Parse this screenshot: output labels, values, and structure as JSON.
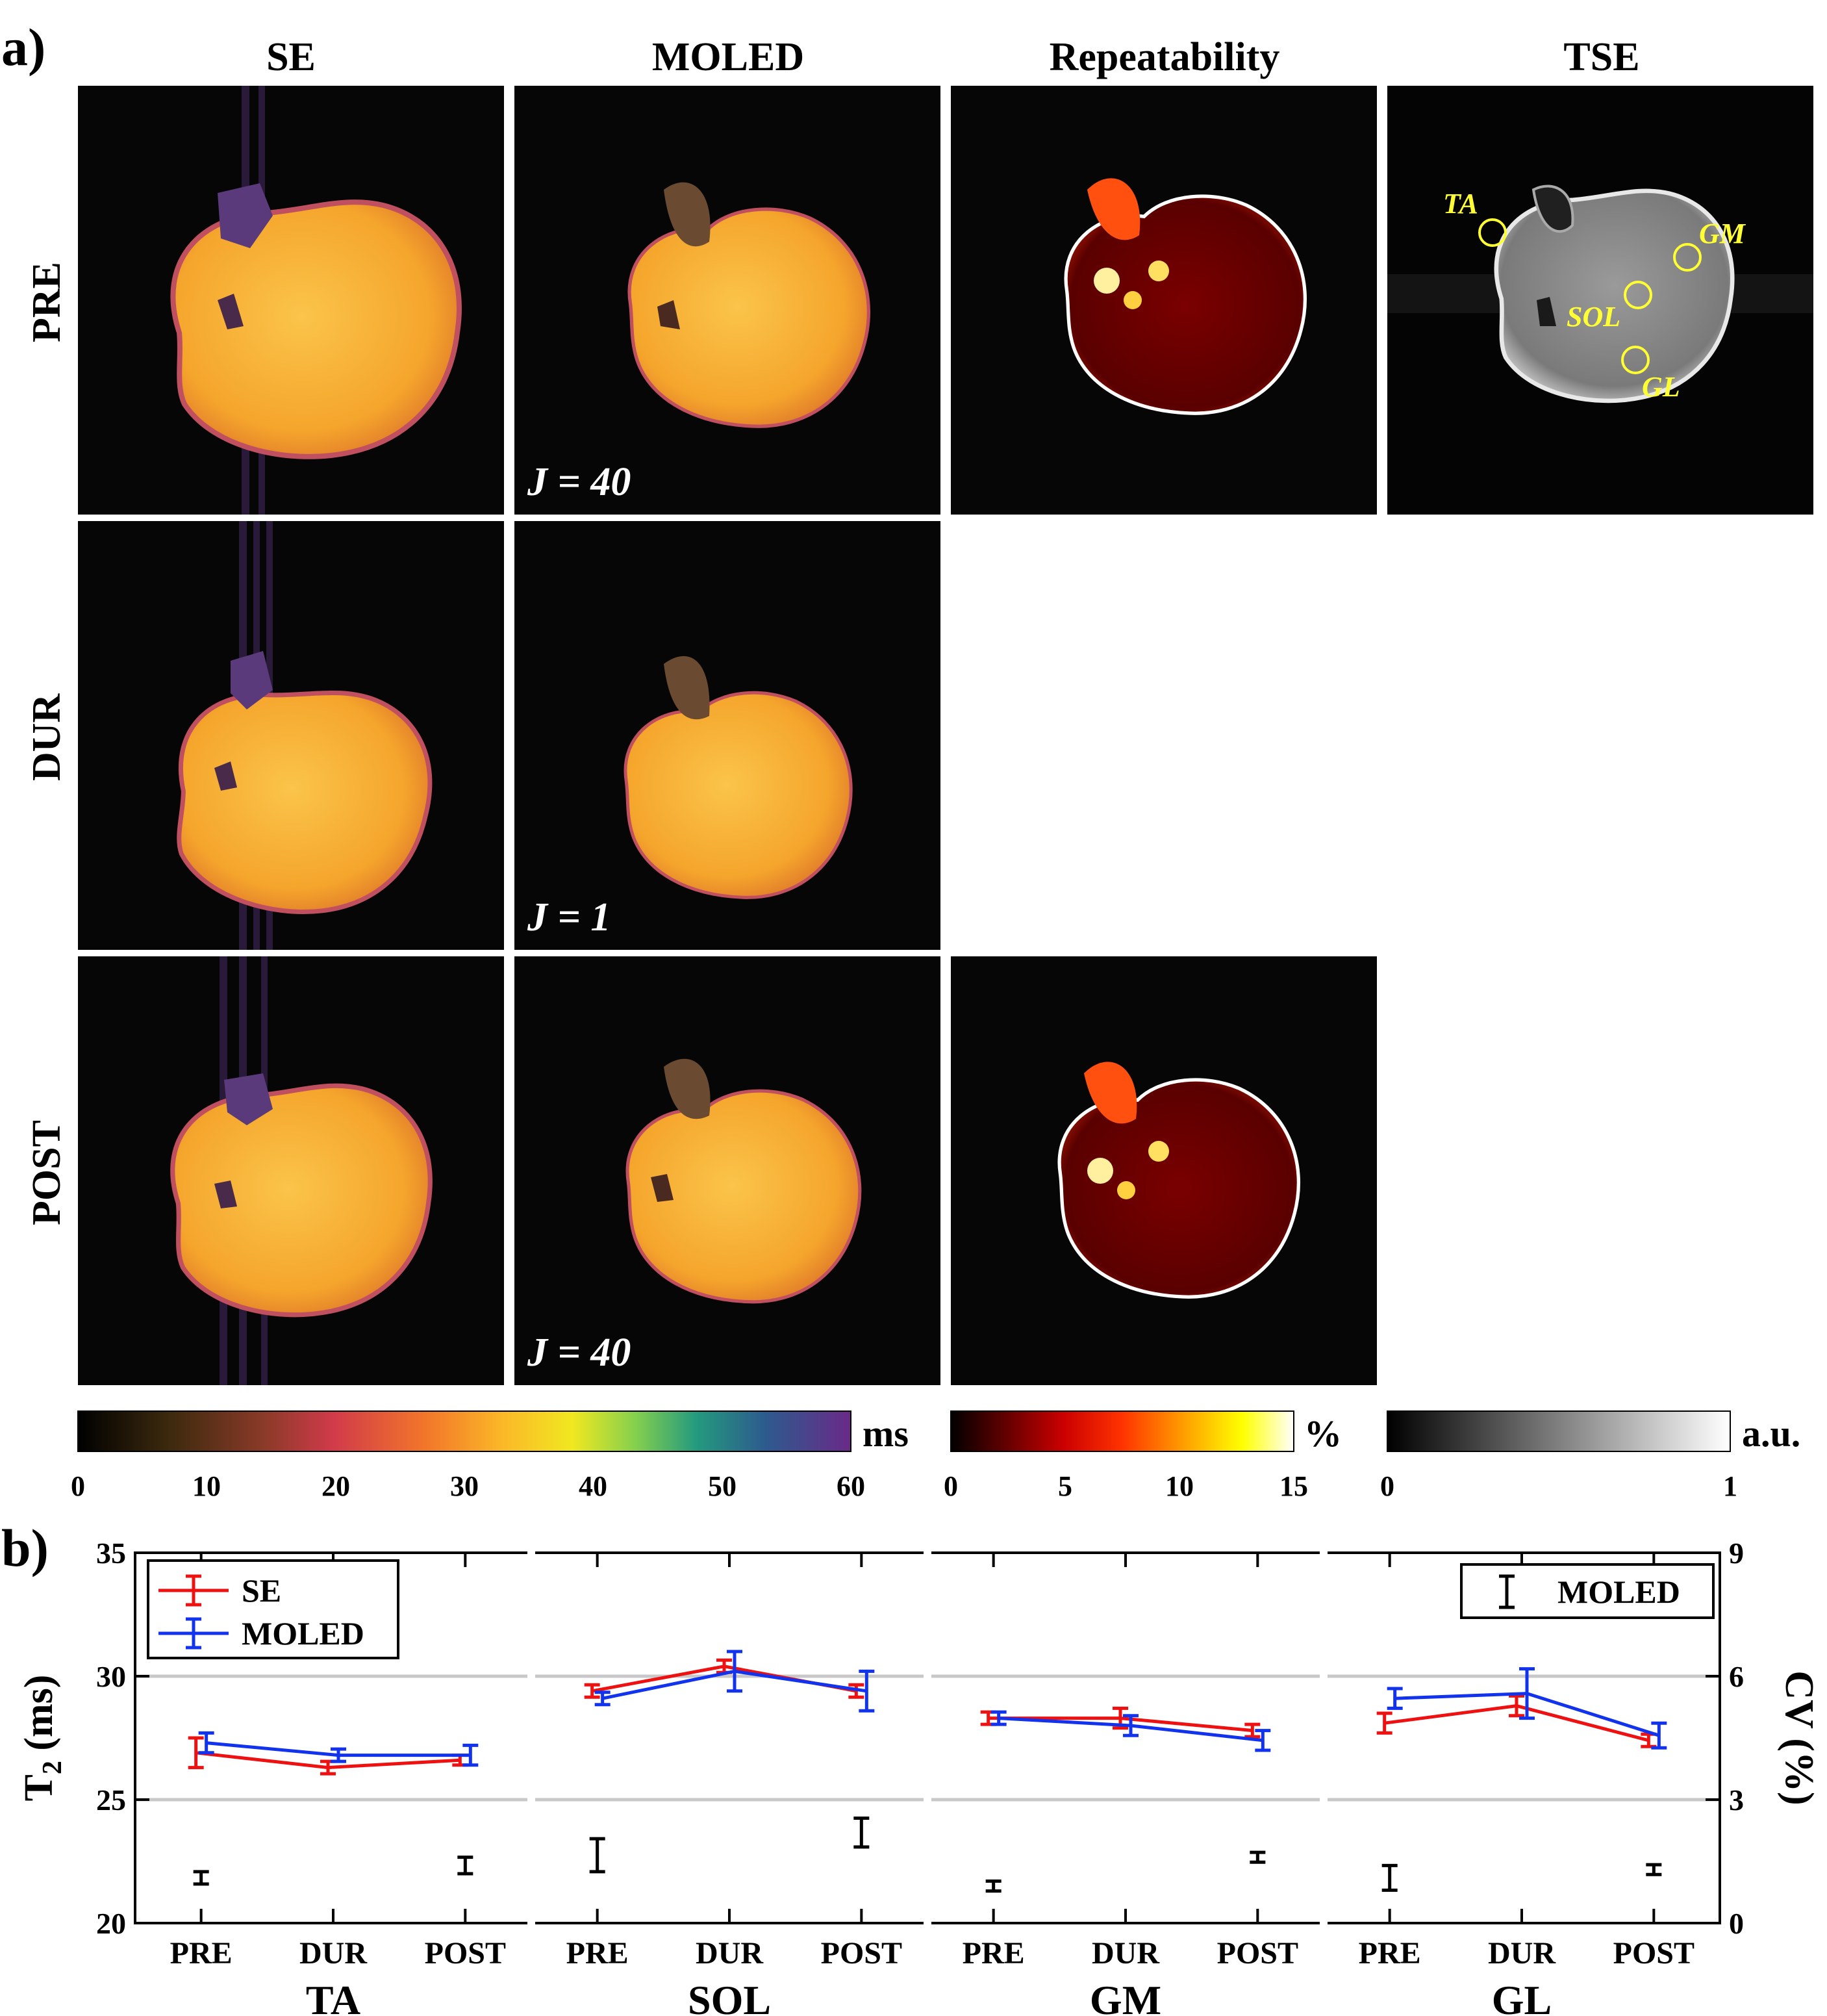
{
  "panel_a": {
    "label": "a)",
    "columns": [
      "SE",
      "MOLED",
      "Repeatability",
      "TSE"
    ],
    "rows": [
      "PRE",
      "DUR",
      "POST"
    ],
    "j_labels": [
      "J = 40",
      "J = 1",
      "J = 40"
    ],
    "roi_labels": [
      "TA",
      "GM",
      "SOL",
      "GL"
    ],
    "roi_color": "#ffff33",
    "colorbars": [
      {
        "unit": "ms",
        "ticks": [
          "0",
          "10",
          "20",
          "30",
          "40",
          "50",
          "60"
        ],
        "colormap": "batlow"
      },
      {
        "unit": "%",
        "ticks": [
          "0",
          "5",
          "10",
          "15"
        ],
        "colormap": "hot"
      },
      {
        "unit": "a.u.",
        "ticks": [
          "0",
          "1"
        ],
        "colormap": "gray"
      }
    ]
  },
  "panel_b": {
    "label": "b)"
  },
  "chart_data": {
    "type": "line",
    "title": "",
    "ylabel_left": "T2 (ms)",
    "ylabel_right": "CV (%)",
    "ylim_left": [
      20,
      35
    ],
    "ylim_right": [
      0,
      9
    ],
    "yticks_left": [
      "20",
      "25",
      "30",
      "35"
    ],
    "yticks_right": [
      "0",
      "3",
      "6",
      "9"
    ],
    "grid": "horizontal at 25 and 30",
    "legend": {
      "entries": [
        "SE",
        "MOLED"
      ],
      "placement": "top-left"
    },
    "legend_cv": {
      "entries": [
        "MOLED"
      ],
      "placement": "top-right"
    },
    "categories": [
      "PRE",
      "DUR",
      "POST"
    ],
    "colors": {
      "SE": "#ee1111",
      "MOLED": "#1133ee",
      "CV": "#000000",
      "grid": "#c8c8c8"
    },
    "groups": [
      {
        "name": "TA",
        "series": [
          {
            "name": "SE",
            "values": [
              26.9,
              26.3,
              26.6
            ],
            "err": [
              0.6,
              0.25,
              0.2
            ]
          },
          {
            "name": "MOLED",
            "values": [
              27.3,
              26.8,
              26.8
            ],
            "err": [
              0.4,
              0.25,
              0.4
            ]
          }
        ],
        "cv": {
          "values": [
            1.1,
            null,
            1.4
          ],
          "err": [
            0.15,
            null,
            0.2
          ]
        }
      },
      {
        "name": "SOL",
        "series": [
          {
            "name": "SE",
            "values": [
              29.4,
              30.4,
              29.4
            ],
            "err": [
              0.25,
              0.25,
              0.25
            ]
          },
          {
            "name": "MOLED",
            "values": [
              29.1,
              30.2,
              29.4
            ],
            "err": [
              0.25,
              0.8,
              0.8
            ]
          }
        ],
        "cv": {
          "values": [
            1.65,
            null,
            2.2
          ],
          "err": [
            0.4,
            null,
            0.35
          ]
        }
      },
      {
        "name": "GM",
        "series": [
          {
            "name": "SE",
            "values": [
              28.3,
              28.3,
              27.8
            ],
            "err": [
              0.25,
              0.4,
              0.25
            ]
          },
          {
            "name": "MOLED",
            "values": [
              28.3,
              28.0,
              27.4
            ],
            "err": [
              0.25,
              0.4,
              0.4
            ]
          }
        ],
        "cv": {
          "values": [
            0.9,
            null,
            1.6
          ],
          "err": [
            0.12,
            null,
            0.12
          ]
        }
      },
      {
        "name": "GL",
        "series": [
          {
            "name": "SE",
            "values": [
              28.1,
              28.8,
              27.4
            ],
            "err": [
              0.4,
              0.4,
              0.25
            ]
          },
          {
            "name": "MOLED",
            "values": [
              29.1,
              29.3,
              27.6
            ],
            "err": [
              0.4,
              1.0,
              0.5
            ]
          }
        ],
        "cv": {
          "values": [
            1.1,
            null,
            1.3
          ],
          "err": [
            0.3,
            null,
            0.12
          ]
        }
      }
    ]
  }
}
